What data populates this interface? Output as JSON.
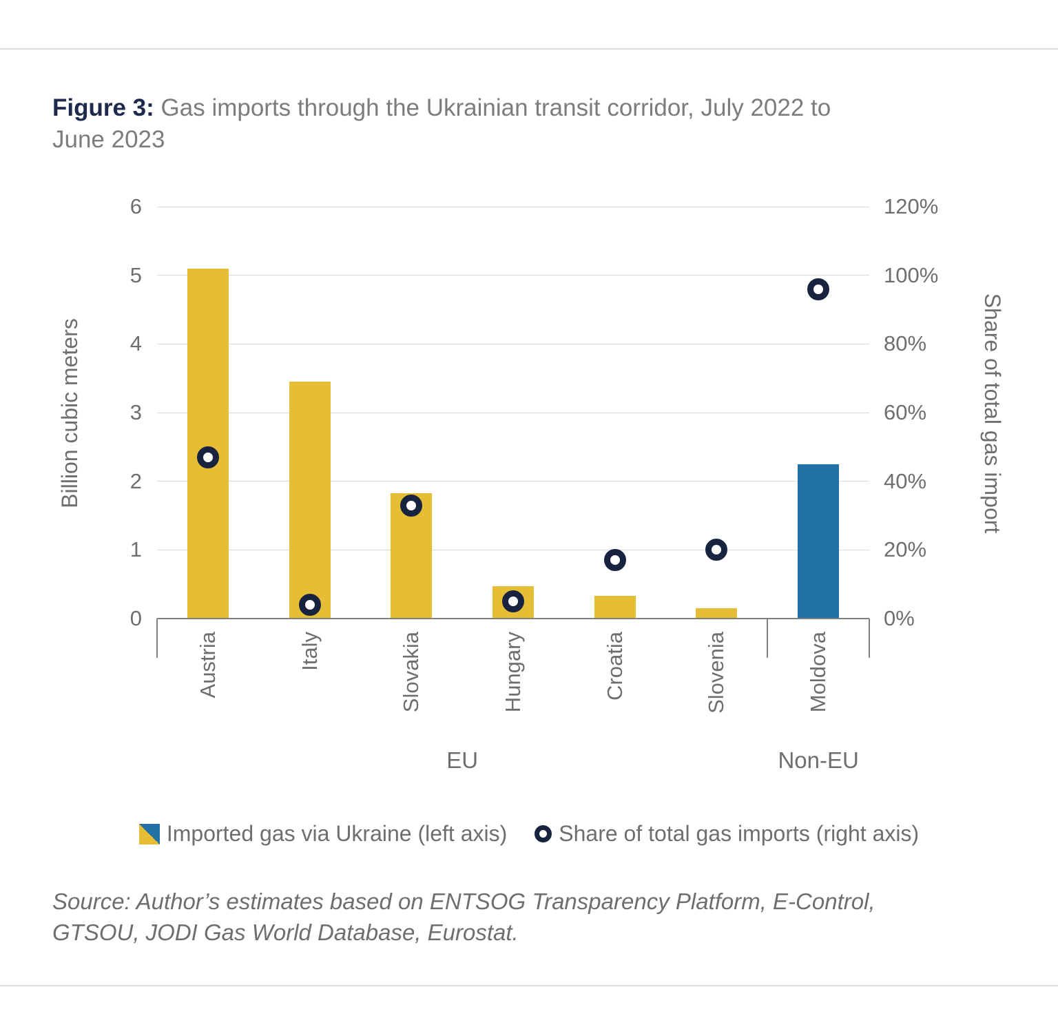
{
  "figure": {
    "label": "Figure 3:",
    "title_line1": "Gas imports through the Ukrainian transit corridor, July 2022 to",
    "title_line2": "June 2023"
  },
  "chart_data": {
    "type": "bar",
    "categories": [
      "Austria",
      "Italy",
      "Slovakia",
      "Hungary",
      "Croatia",
      "Slovenia",
      "Moldova"
    ],
    "category_groups": [
      {
        "label": "EU",
        "span": [
          0,
          5
        ]
      },
      {
        "label": "Non-EU",
        "span": [
          6,
          6
        ]
      }
    ],
    "series": [
      {
        "name": "Imported gas via Ukraine (left axis)",
        "type": "bar",
        "axis": "left",
        "values": [
          5.1,
          3.45,
          1.83,
          0.47,
          0.33,
          0.15,
          2.25
        ],
        "bar_colors": [
          "#e6be35",
          "#e6be35",
          "#e6be35",
          "#e6be35",
          "#e6be35",
          "#e6be35",
          "#2171a6"
        ]
      },
      {
        "name": "Share of total gas imports (right axis)",
        "type": "scatter",
        "axis": "right",
        "unit": "%",
        "marker": "open-circle",
        "marker_color": "#18233f",
        "values": [
          47,
          4,
          33,
          5,
          17,
          20,
          96
        ]
      }
    ],
    "left_axis": {
      "title": "Billion cubic meters",
      "min": 0,
      "max": 6,
      "tick_step": 1,
      "tick_labels": [
        "0",
        "1",
        "2",
        "3",
        "4",
        "5",
        "6"
      ]
    },
    "right_axis": {
      "title": "Share of total gas import",
      "min": 0,
      "max": 120,
      "tick_step": 20,
      "tick_labels": [
        "0%",
        "20%",
        "40%",
        "60%",
        "80%",
        "100%",
        "120%"
      ]
    },
    "grid": true,
    "legend_position": "bottom"
  },
  "legend": {
    "items": [
      {
        "label": "Imported gas via Ukraine (left axis)",
        "swatch": "split-square",
        "colors": [
          "#e6be35",
          "#2171a6"
        ]
      },
      {
        "label": "Share of total gas imports (right axis)",
        "swatch": "open-circle",
        "color": "#18233f"
      }
    ]
  },
  "source": {
    "line1": "Source: Author’s estimates based on ENTSOG Transparency Platform, E-Control,",
    "line2": "GTSOU, JODI Gas World Database, Eurostat."
  },
  "colors": {
    "bar_yellow": "#e6be35",
    "bar_blue": "#2171a6",
    "marker_navy": "#18233f",
    "title_navy": "#1e2a4d",
    "text_gray": "#6d6e71",
    "gridline": "#d9d9d9",
    "axis_line": "#7f7f7f"
  }
}
